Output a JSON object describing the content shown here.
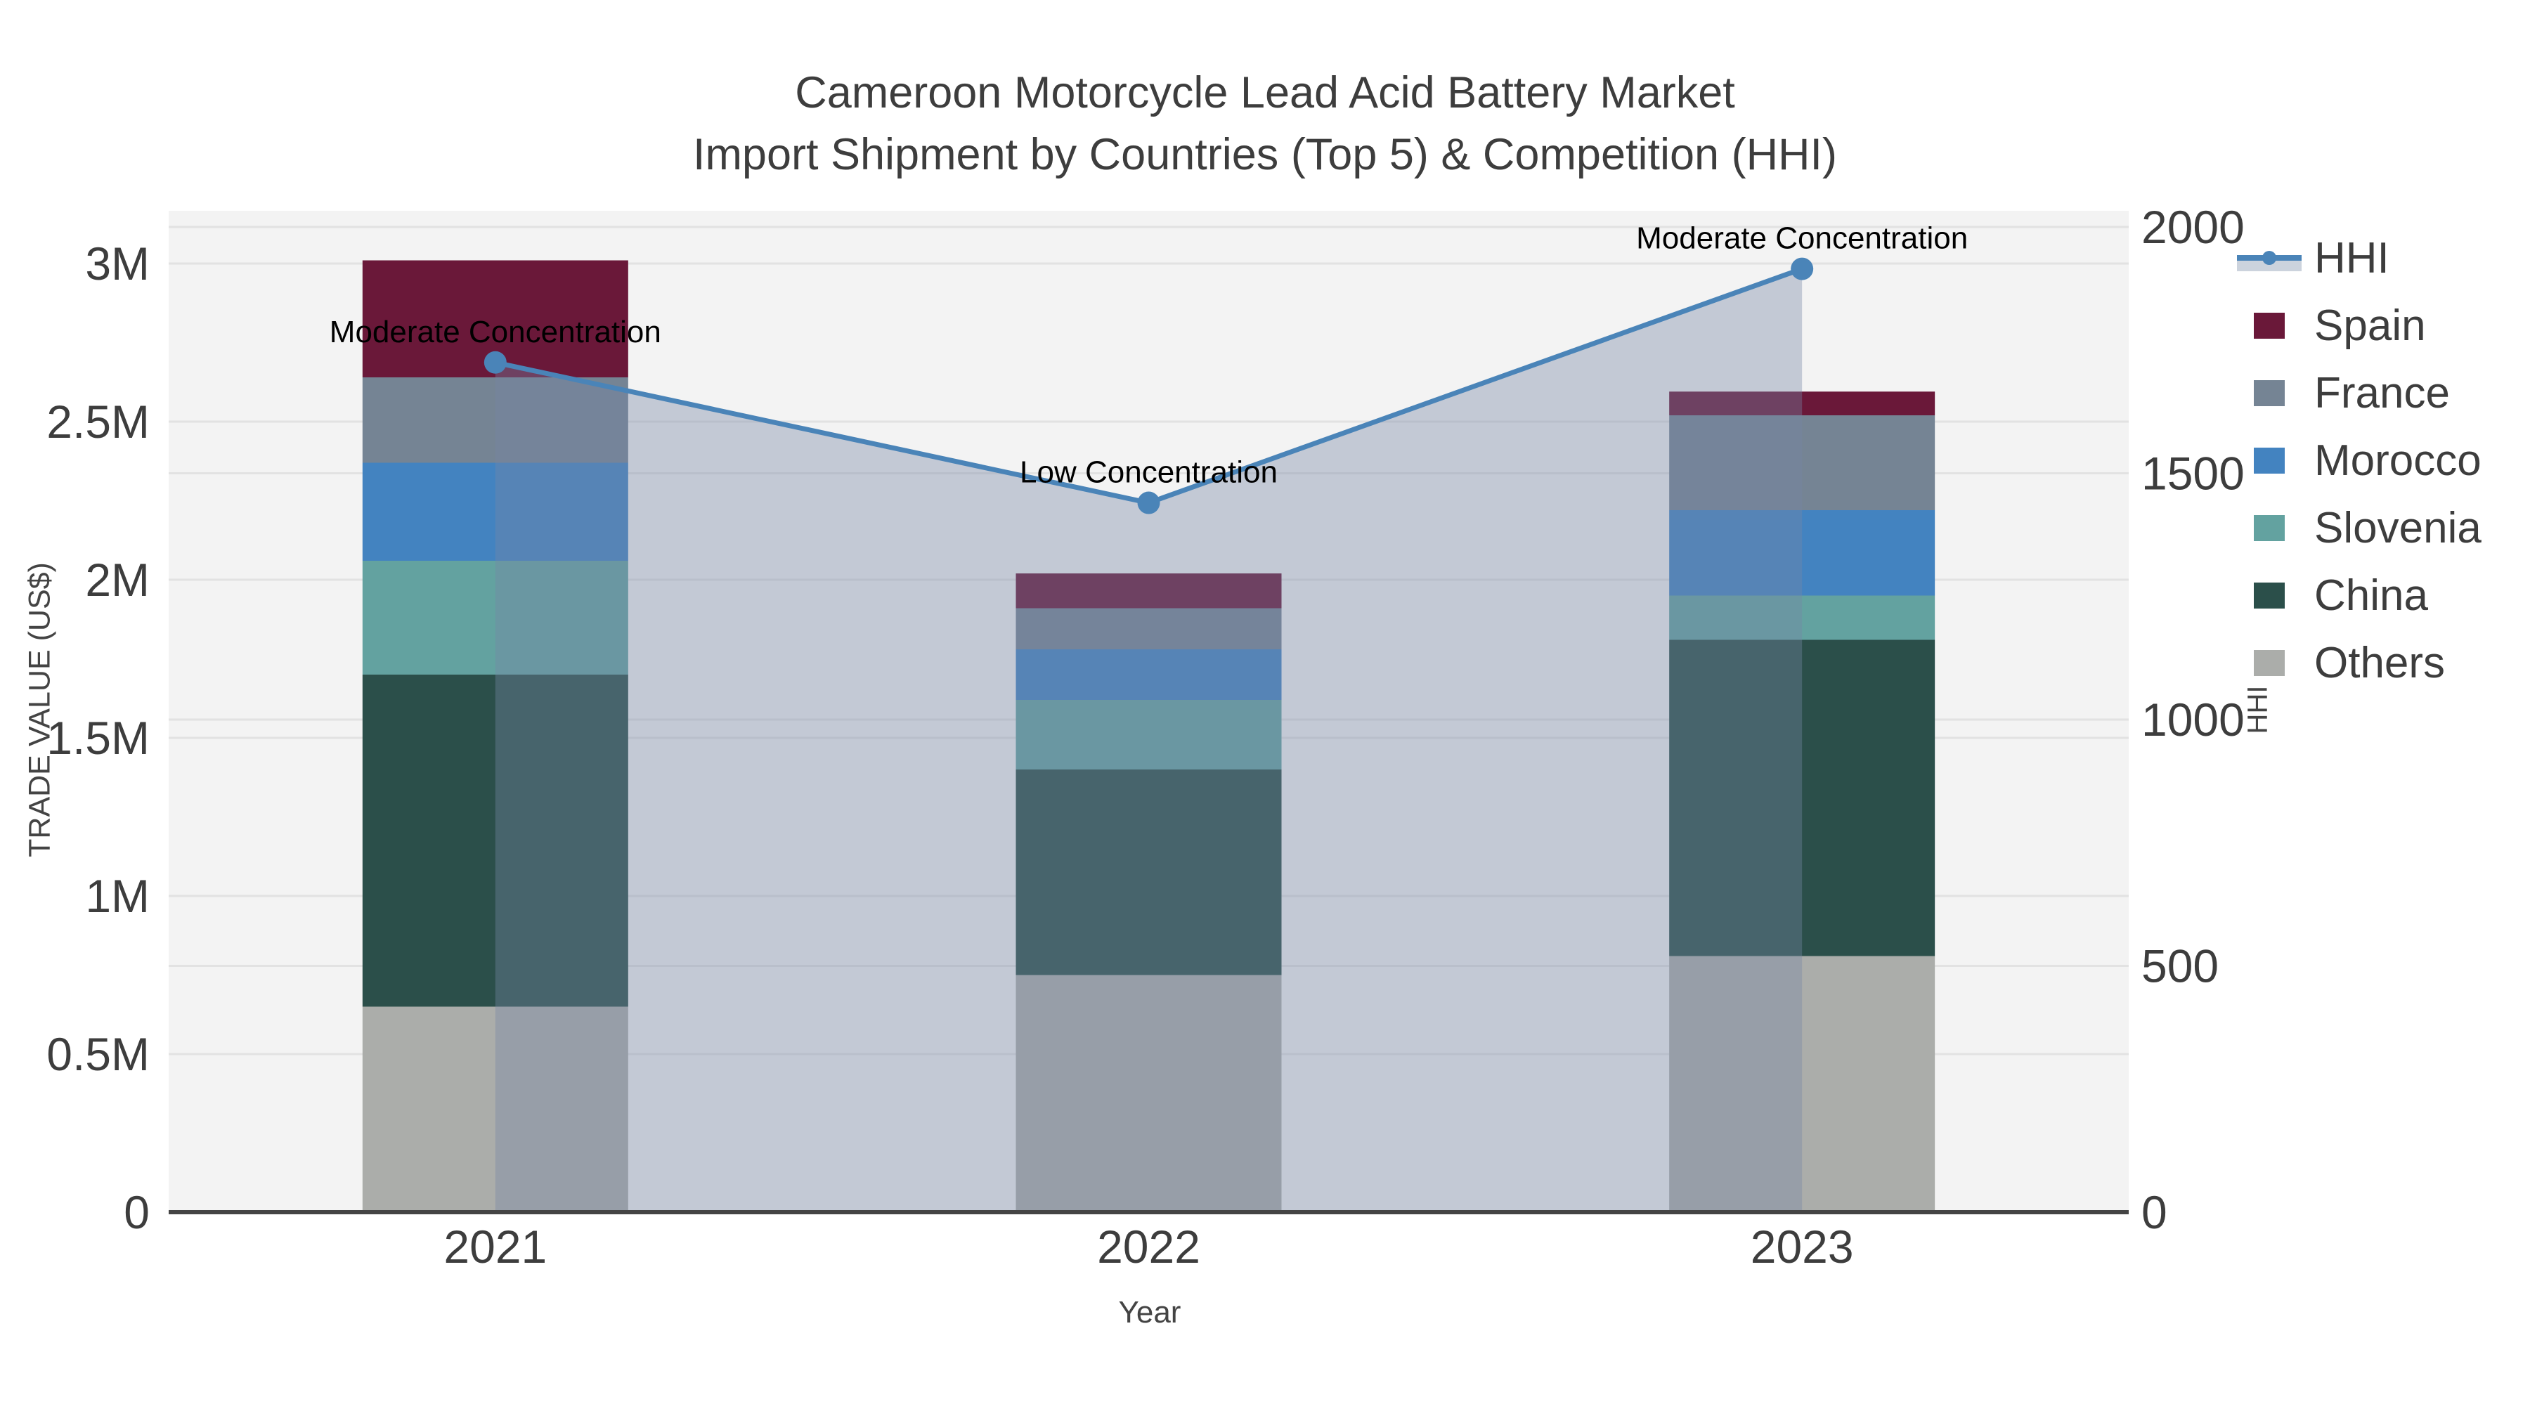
{
  "page": {
    "background": "#ffffff"
  },
  "title": {
    "line1": "Cameroon Motorcycle Lead Acid Battery Market",
    "line2": "Import Shipment by Countries (Top 5) & Competition (HHI)"
  },
  "axes": {
    "x": {
      "title": "Year",
      "categories": [
        "2021",
        "2022",
        "2023"
      ]
    },
    "y_left": {
      "title": "TRADE VALUE (US$)",
      "ticks": [
        {
          "label": "0",
          "value": 0
        },
        {
          "label": "0.5M",
          "value": 500000
        },
        {
          "label": "1M",
          "value": 1000000
        },
        {
          "label": "1.5M",
          "value": 1500000
        },
        {
          "label": "2M",
          "value": 2000000
        },
        {
          "label": "2.5M",
          "value": 2500000
        },
        {
          "label": "3M",
          "value": 3000000
        }
      ]
    },
    "y_right": {
      "title": "HHI",
      "ticks": [
        {
          "label": "0",
          "value": 0
        },
        {
          "label": "500",
          "value": 500
        },
        {
          "label": "1000",
          "value": 1000
        },
        {
          "label": "1500",
          "value": 1500
        },
        {
          "label": "2000",
          "value": 2000
        }
      ]
    }
  },
  "legend": {
    "items": [
      {
        "label": "HHI",
        "type": "line",
        "color": "#4a84b8",
        "band_color": "#ccd3dd"
      },
      {
        "label": "Spain",
        "type": "swatch",
        "color": "#6a1839"
      },
      {
        "label": "France",
        "type": "swatch",
        "color": "#758494"
      },
      {
        "label": "Morocco",
        "type": "swatch",
        "color": "#4383c0"
      },
      {
        "label": "Slovenia",
        "type": "swatch",
        "color": "#63a2a0"
      },
      {
        "label": "China",
        "type": "swatch",
        "color": "#2b4f4a"
      },
      {
        "label": "Others",
        "type": "swatch",
        "color": "#abadaa"
      }
    ]
  },
  "chart_data": {
    "type": "bar",
    "subtype": "stacked-bar with HHI line + area on secondary axis",
    "title": "Cameroon Motorcycle Lead Acid Battery Market Import Shipment by Countries (Top 5) & Competition (HHI)",
    "xlabel": "Year",
    "ylabel_left": "TRADE VALUE (US$)",
    "ylabel_right": "HHI",
    "categories": [
      "2021",
      "2022",
      "2023"
    ],
    "stack_order_bottom_to_top": [
      "Others",
      "China",
      "Slovenia",
      "Morocco",
      "France",
      "Spain"
    ],
    "series": [
      {
        "name": "Others",
        "values": [
          650000,
          750000,
          810000
        ],
        "color": "#abadaa"
      },
      {
        "name": "China",
        "values": [
          1050000,
          650000,
          1000000
        ],
        "color": "#2b4f4a"
      },
      {
        "name": "Slovenia",
        "values": [
          360000,
          220000,
          140000
        ],
        "color": "#63a2a0"
      },
      {
        "name": "Morocco",
        "values": [
          310000,
          160000,
          270000
        ],
        "color": "#4383c0"
      },
      {
        "name": "France",
        "values": [
          270000,
          130000,
          300000
        ],
        "color": "#758494"
      },
      {
        "name": "Spain",
        "values": [
          370000,
          110000,
          75000
        ],
        "color": "#6a1839"
      }
    ],
    "totals": [
      3010000,
      2020000,
      2595000
    ],
    "hhi_line": {
      "name": "HHI",
      "type": "line+area",
      "axis": "right",
      "values": [
        1725,
        1440,
        1915
      ],
      "line_color": "#4a84b8",
      "area_color": "rgba(118,135,165,0.38)"
    },
    "annotations": [
      {
        "category": "2021",
        "text": "Moderate Concentration"
      },
      {
        "category": "2022",
        "text": "Low Concentration"
      },
      {
        "category": "2023",
        "text": "Moderate Concentration"
      }
    ],
    "ylim_left": [
      0,
      3166000
    ],
    "ylim_right": [
      0,
      2033
    ],
    "grid": true,
    "legend_position": "top-right"
  },
  "colors": {
    "plot_background": "#f3f3f3",
    "gridline": "#e2e2e2",
    "axis_line": "#444444",
    "tick_text": "#3d3d3d",
    "annotation_text": "#000000",
    "hhi_line": "#4a84b8",
    "hhi_area": "rgba(118,135,165,0.38)"
  }
}
